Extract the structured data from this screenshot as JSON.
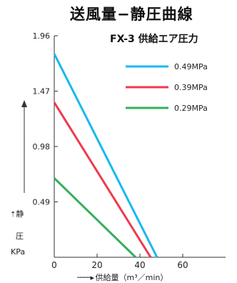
{
  "chart_data": {
    "type": "line",
    "title": "送風量−静圧曲線",
    "subtitle": "FX-3 供給エア圧力",
    "ylabel_chars": [
      "静",
      "圧"
    ],
    "yunit": "KPa",
    "xlabel": "供給量（m³／min）",
    "xlim": [
      0,
      80
    ],
    "ylim": [
      0,
      1.96
    ],
    "yticks": [
      0.49,
      0.98,
      1.47,
      1.96
    ],
    "ytick_labels": [
      "0.49",
      "0.98",
      "1.47",
      "1.96"
    ],
    "xticks": [
      0,
      20,
      40,
      60
    ],
    "xtick_labels": [
      "0",
      "20",
      "40",
      "60"
    ],
    "legend_position": "top-right",
    "series": [
      {
        "name": "0.49MPa",
        "color": "#1ab8ee",
        "x": [
          0,
          48
        ],
        "y": [
          1.8,
          0
        ]
      },
      {
        "name": "0.39MPa",
        "color": "#ee3a4e",
        "x": [
          0,
          45
        ],
        "y": [
          1.37,
          0
        ]
      },
      {
        "name": "0.29MPa",
        "color": "#33b05a",
        "x": [
          0,
          38
        ],
        "y": [
          0.7,
          0
        ]
      }
    ]
  }
}
